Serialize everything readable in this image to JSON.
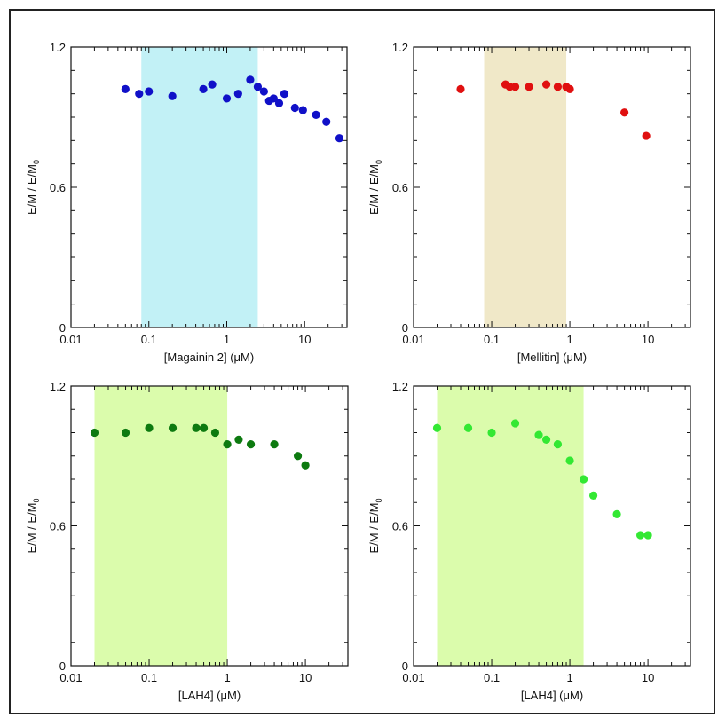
{
  "chart_data": [
    {
      "type": "scatter",
      "x_scale": "log",
      "xlim": [
        0.01,
        35
      ],
      "ylim": [
        0,
        1.2
      ],
      "x_ticks": [
        "0.01",
        "0.1",
        "1",
        "10"
      ],
      "y_ticks": [
        "0",
        "0.6",
        "1.2"
      ],
      "xlabel": "[Magainin 2] (μM)",
      "ylabel_main": "E/M / E/M",
      "ylabel_sub": "0",
      "marker_color": "#1010c8",
      "band_color": "#c2f1f6",
      "band_range": [
        0.08,
        2.5
      ],
      "series": [
        {
          "x": [
            0.05,
            0.075,
            0.1,
            0.2,
            0.5,
            0.65,
            1.0,
            1.4,
            2.0,
            2.5,
            3.0,
            3.5,
            4.0,
            4.7,
            5.5,
            7.5,
            9.5,
            14.0,
            19.0,
            28.0
          ],
          "y": [
            1.02,
            1.0,
            1.01,
            0.99,
            1.02,
            1.04,
            0.98,
            1.0,
            1.06,
            1.03,
            1.01,
            0.97,
            0.98,
            0.96,
            1.0,
            0.94,
            0.93,
            0.91,
            0.88,
            0.81
          ]
        }
      ]
    },
    {
      "type": "scatter",
      "x_scale": "log",
      "xlim": [
        0.01,
        35
      ],
      "ylim": [
        0,
        1.2
      ],
      "x_ticks": [
        "0.01",
        "0.1",
        "1",
        "10"
      ],
      "y_ticks": [
        "0",
        "0.6",
        "1.2"
      ],
      "xlabel": "[Mellitin] (μM)",
      "ylabel_main": "E/M / E/M",
      "ylabel_sub": "0",
      "marker_color": "#e01010",
      "band_color": "#f0e8c8",
      "band_range": [
        0.08,
        0.9
      ],
      "series": [
        {
          "x": [
            0.04,
            0.15,
            0.17,
            0.2,
            0.3,
            0.5,
            0.7,
            0.9,
            1.0,
            5.0,
            9.5
          ],
          "y": [
            1.02,
            1.04,
            1.03,
            1.03,
            1.03,
            1.04,
            1.03,
            1.03,
            1.02,
            0.92,
            0.82
          ]
        }
      ]
    },
    {
      "type": "scatter",
      "x_scale": "log",
      "xlim": [
        0.01,
        35
      ],
      "ylim": [
        0,
        1.2
      ],
      "x_ticks": [
        "0.01",
        "0.1",
        "1",
        "10"
      ],
      "y_ticks": [
        "0",
        "0.6",
        "1.2"
      ],
      "xlabel": "[LAH4] (μM)",
      "ylabel_main": "E/M / E/M",
      "ylabel_sub": "0",
      "marker_color": "#0d7a10",
      "band_color": "#dbfcac",
      "band_range": [
        0.02,
        1.0
      ],
      "series": [
        {
          "x": [
            0.02,
            0.05,
            0.1,
            0.2,
            0.4,
            0.5,
            0.7,
            1.0,
            1.4,
            2.0,
            4.0,
            8.0,
            10.0
          ],
          "y": [
            1.0,
            1.0,
            1.02,
            1.02,
            1.02,
            1.02,
            1.0,
            0.95,
            0.97,
            0.95,
            0.95,
            0.9,
            0.86
          ]
        }
      ]
    },
    {
      "type": "scatter",
      "x_scale": "log",
      "xlim": [
        0.01,
        35
      ],
      "ylim": [
        0,
        1.2
      ],
      "x_ticks": [
        "0.01",
        "0.1",
        "1",
        "10"
      ],
      "y_ticks": [
        "0",
        "0.6",
        "1.2"
      ],
      "xlabel": "[LAH4] (μM)",
      "ylabel_main": "E/M / E/M",
      "ylabel_sub": "0",
      "marker_color": "#33e833",
      "band_color": "#dbfcac",
      "band_range": [
        0.02,
        1.5
      ],
      "series": [
        {
          "x": [
            0.02,
            0.05,
            0.1,
            0.2,
            0.4,
            0.5,
            0.7,
            1.0,
            1.5,
            2.0,
            4.0,
            8.0,
            10.0
          ],
          "y": [
            1.02,
            1.02,
            1.0,
            1.04,
            0.99,
            0.97,
            0.95,
            0.88,
            0.8,
            0.73,
            0.65,
            0.56,
            0.56
          ]
        }
      ]
    }
  ]
}
